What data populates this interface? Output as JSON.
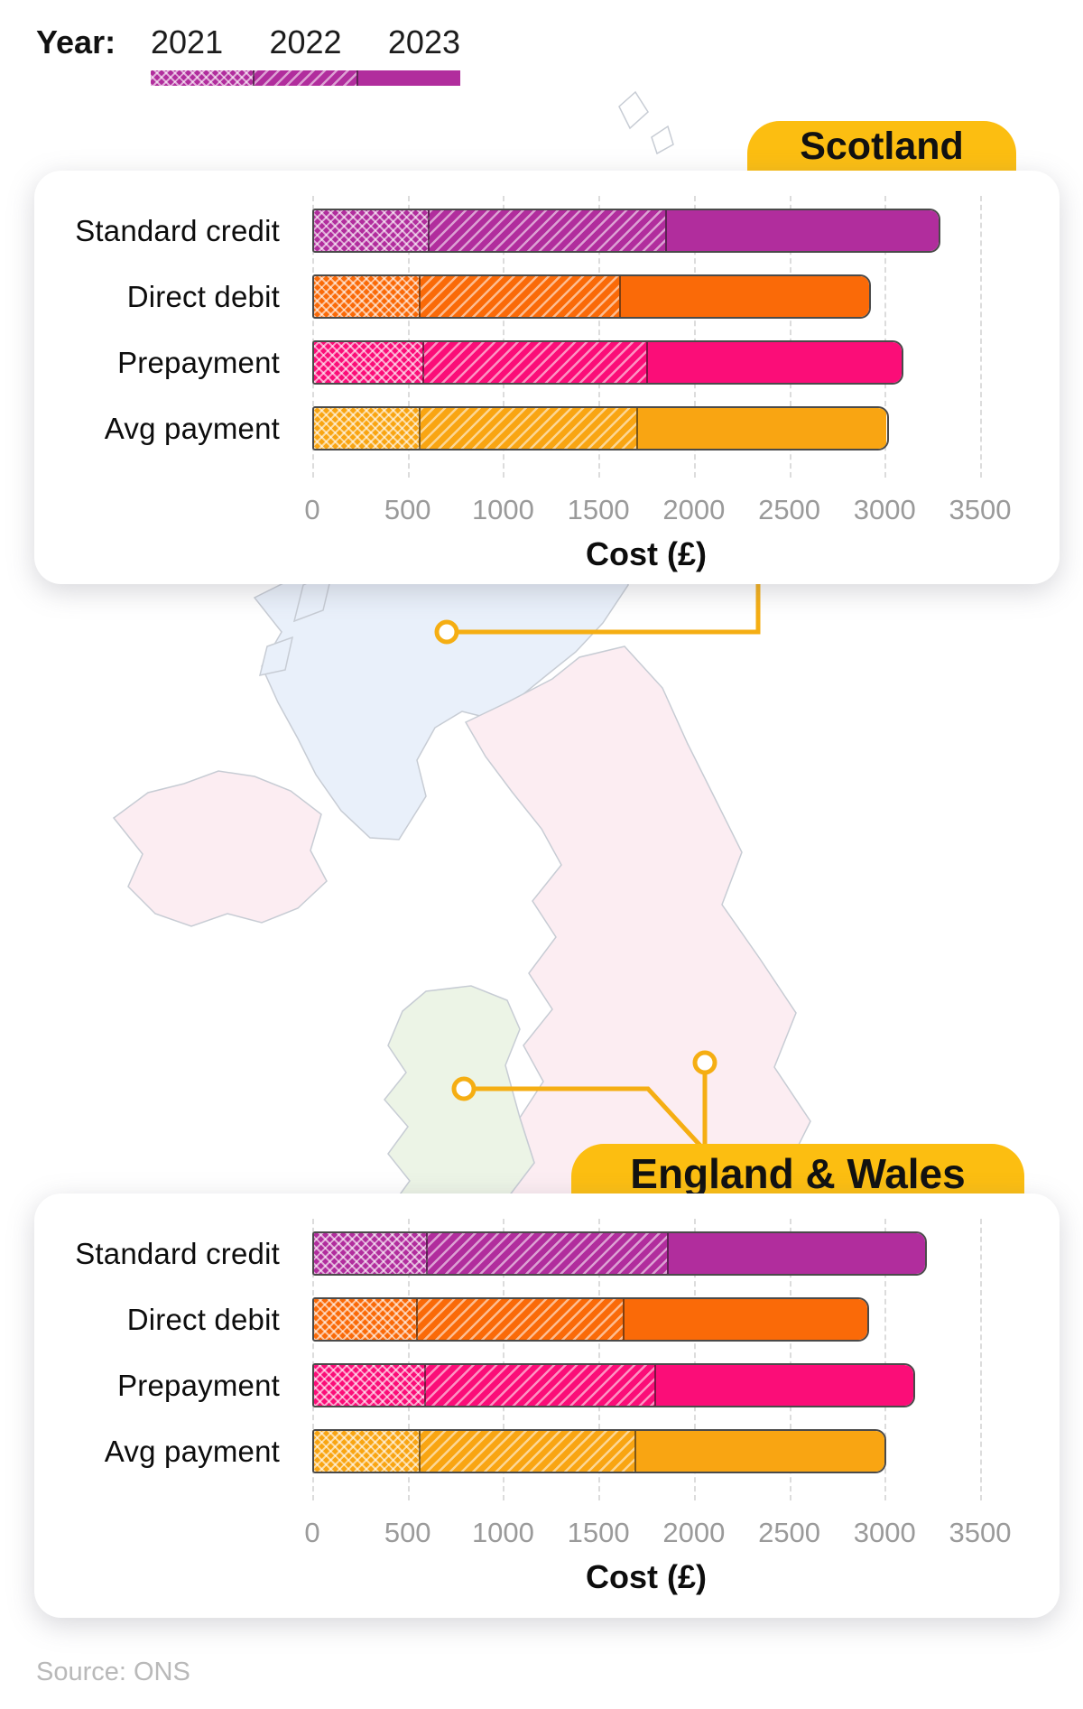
{
  "legend": {
    "label": "Year:",
    "years": [
      "2021",
      "2022",
      "2023"
    ],
    "patterns": [
      "crosshatch",
      "diagonal",
      "solid"
    ]
  },
  "colors": {
    "standard_credit": "#b12d9d",
    "direct_debit": "#fa6a08",
    "prepayment": "#fb0d78",
    "avg_payment": "#f9a512",
    "tab": "#fcbe11",
    "connector": "#f5ae13",
    "map_scotland": "#e9f0fa",
    "map_england": "#fcedf2",
    "map_wales": "#ecf4e6",
    "map_ni": "#fcedf2",
    "map_stroke": "#c7ccd4"
  },
  "regions": {
    "scotland_title": "Scotland",
    "england_title": "England & Wales"
  },
  "source_note": "Source: ONS",
  "chart_data": [
    {
      "type": "bar",
      "region": "Scotland",
      "orientation": "horizontal",
      "categories": [
        "Standard credit",
        "Direct debit",
        "Prepayment",
        "Avg payment"
      ],
      "series": [
        {
          "name": "2021",
          "pattern": "crosshatch",
          "values_cumulative_gbp": [
            600,
            550,
            570,
            550
          ]
        },
        {
          "name": "2022",
          "pattern": "diagonal",
          "values_cumulative_gbp": [
            1850,
            1610,
            1750,
            1700
          ]
        },
        {
          "name": "2023",
          "pattern": "solid",
          "values_cumulative_gbp": [
            3290,
            2930,
            3100,
            3020
          ]
        }
      ],
      "row_color_keys": [
        "standard_credit",
        "direct_debit",
        "prepayment",
        "avg_payment"
      ],
      "xlabel": "Cost (£)",
      "xlim": [
        0,
        3500
      ],
      "xticks": [
        0,
        500,
        1000,
        1500,
        2000,
        2500,
        3000,
        3500
      ],
      "grid": "vertical dashed",
      "note": "Each bar spans 0 to the 2023 level; pattern boundaries mark the 2021 and 2022 cumulative levels"
    },
    {
      "type": "bar",
      "region": "England & Wales",
      "orientation": "horizontal",
      "categories": [
        "Standard credit",
        "Direct debit",
        "Prepayment",
        "Avg payment"
      ],
      "series": [
        {
          "name": "2021",
          "pattern": "crosshatch",
          "values_cumulative_gbp": [
            590,
            540,
            580,
            550
          ]
        },
        {
          "name": "2022",
          "pattern": "diagonal",
          "values_cumulative_gbp": [
            1860,
            1630,
            1795,
            1690
          ]
        },
        {
          "name": "2023",
          "pattern": "solid",
          "values_cumulative_gbp": [
            3220,
            2920,
            3160,
            3010
          ]
        }
      ],
      "row_color_keys": [
        "standard_credit",
        "direct_debit",
        "prepayment",
        "avg_payment"
      ],
      "xlabel": "Cost (£)",
      "xlim": [
        0,
        3500
      ],
      "xticks": [
        0,
        500,
        1000,
        1500,
        2000,
        2500,
        3000,
        3500
      ],
      "grid": "vertical dashed",
      "note": "Each bar spans 0 to the 2023 level; pattern boundaries mark the 2021 and 2022 cumulative levels"
    }
  ]
}
